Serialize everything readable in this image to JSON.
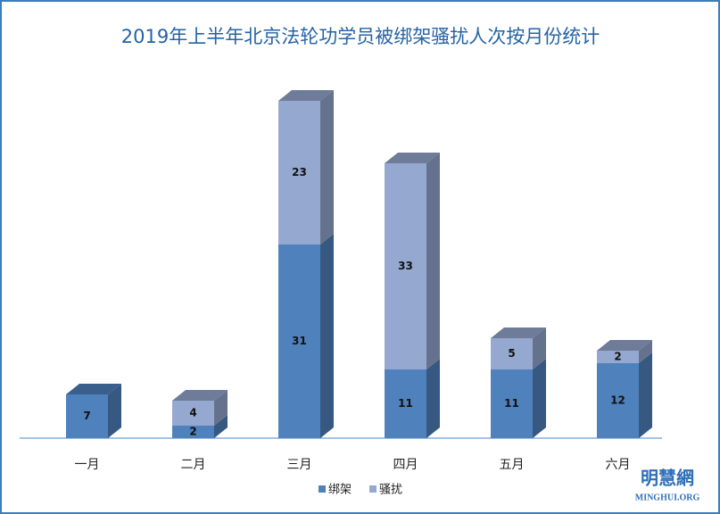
{
  "chart_data": {
    "type": "bar3d_stacked",
    "title": "2019年上半年北京法轮功学员被绑架骚扰人次按月份统计",
    "categories": [
      "一月",
      "二月",
      "三月",
      "四月",
      "五月",
      "六月"
    ],
    "series": [
      {
        "name": "绑架",
        "color": "#4f81bd",
        "values": [
          7,
          2,
          31,
          11,
          11,
          12
        ]
      },
      {
        "name": "骚扰",
        "color": "#95a8d0",
        "values": [
          null,
          4,
          23,
          33,
          5,
          2
        ]
      }
    ],
    "ylim": [
      0,
      60
    ],
    "logo": "明慧網",
    "logo_sub": "MINGHUI.ORG"
  }
}
